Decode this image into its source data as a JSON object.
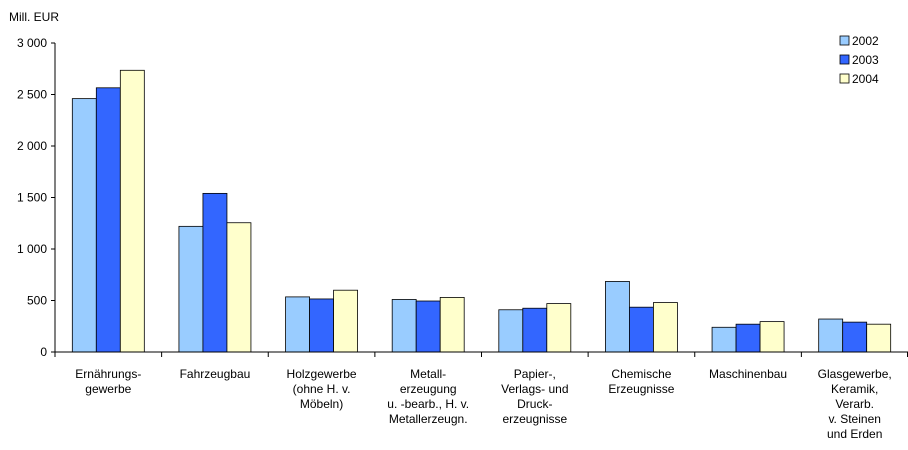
{
  "chart_data": {
    "type": "bar",
    "ylabel": "Mill. EUR",
    "ylim": [
      0,
      3000
    ],
    "yticks": [
      0,
      500,
      1000,
      1500,
      2000,
      2500,
      3000
    ],
    "ytick_labels": [
      "0",
      "500",
      "1 000",
      "1 500",
      "2 000",
      "2 500",
      "3 000"
    ],
    "grid": false,
    "legend_position": "top-right",
    "categories": [
      [
        "Ernährungs-",
        "gewerbe"
      ],
      [
        "Fahrzeugbau"
      ],
      [
        "Holzgewerbe",
        "(ohne H. v.",
        "Möbeln)"
      ],
      [
        "Metall-",
        "erzeugung",
        "u. -bearb., H. v.",
        "Metallerzeugn."
      ],
      [
        "Papier-,",
        "Verlags- und",
        "Druck-",
        "erzeugnisse"
      ],
      [
        "Chemische",
        "Erzeugnisse"
      ],
      [
        "Maschinenbau"
      ],
      [
        "Glasgewerbe,",
        "Keramik,",
        "Verarb.",
        "v. Steinen",
        "und Erden"
      ]
    ],
    "series": [
      {
        "name": "2002",
        "color": "#99ccff",
        "values": [
          2460,
          1220,
          535,
          510,
          410,
          685,
          240,
          320
        ]
      },
      {
        "name": "2003",
        "color": "#3366ff",
        "values": [
          2565,
          1540,
          515,
          495,
          425,
          435,
          270,
          290
        ]
      },
      {
        "name": "2004",
        "color": "#ffffcc",
        "values": [
          2735,
          1255,
          600,
          530,
          470,
          480,
          295,
          270
        ]
      }
    ]
  }
}
